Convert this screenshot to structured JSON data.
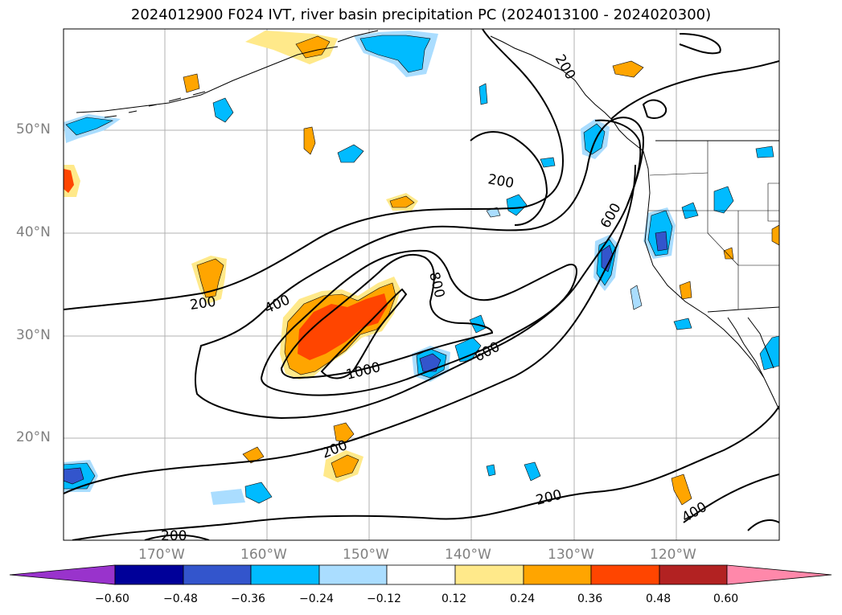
{
  "title": "2024012900 F024 IVT, river basin precipitation PC (2024013100 - 2024020300)",
  "lat_labels": [
    "50°N",
    "40°N",
    "30°N",
    "20°N"
  ],
  "lon_labels": [
    "170°W",
    "160°W",
    "150°W",
    "140°W",
    "130°W",
    "120°W"
  ],
  "ivt_contour_labels": [
    "200",
    "200",
    "200",
    "200",
    "200",
    "200",
    "400",
    "400",
    "600",
    "600",
    "800",
    "1000"
  ],
  "colorbar": {
    "ticks": [
      "−0.60",
      "−0.48",
      "−0.36",
      "−0.24",
      "−0.12",
      "0.12",
      "0.24",
      "0.36",
      "0.48",
      "0.60"
    ],
    "colors": [
      "#9933cc",
      "#000099",
      "#3355cc",
      "#00bbff",
      "#aaddff",
      "#ffffff",
      "#ffe98a",
      "#ffa500",
      "#ff4500",
      "#b22222",
      "#ff88aa"
    ]
  },
  "colors": {
    "grid": "#b0b0b0",
    "contour": "#000000",
    "tick_label": "#808080"
  }
}
